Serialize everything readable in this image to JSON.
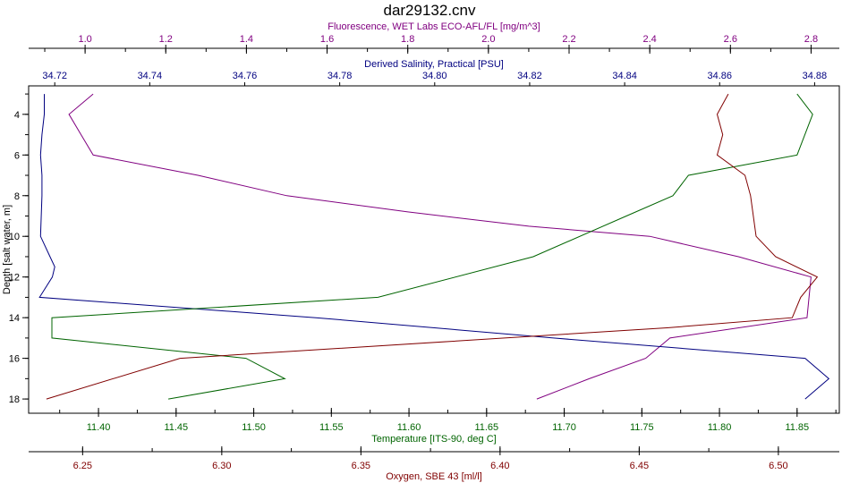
{
  "chart_data": {
    "type": "line",
    "title": "dar29132.cnv",
    "grid": false,
    "y_axis": {
      "label": "Depth [salt water, m]",
      "lim": [
        2.6,
        18.7
      ],
      "inverted": true,
      "ticks": [
        4,
        6,
        8,
        10,
        12,
        14,
        16,
        18
      ]
    },
    "x_axes": [
      {
        "id": "fluorescence",
        "label": "Fluorescence, WET Labs ECO-AFL/FL [mg/m^3]",
        "position": "top",
        "color": "#800080",
        "lim": [
          0.86,
          2.87
        ],
        "ticks": [
          1.0,
          1.2,
          1.4,
          1.6,
          1.8,
          2.0,
          2.2,
          2.4,
          2.6,
          2.8
        ],
        "tick_labels": [
          "1.0",
          "1.2",
          "1.4",
          "1.6",
          "1.8",
          "2.0",
          "2.2",
          "2.4",
          "2.6",
          "2.8"
        ]
      },
      {
        "id": "salinity",
        "label": "Derived Salinity, Practical [PSU]",
        "position": "top",
        "color": "#000080",
        "lim": [
          34.7145,
          34.8852
        ],
        "ticks": [
          34.72,
          34.74,
          34.76,
          34.78,
          34.8,
          34.82,
          34.84,
          34.86,
          34.88
        ],
        "tick_labels": [
          "34.72",
          "34.74",
          "34.76",
          "34.78",
          "34.80",
          "34.82",
          "34.84",
          "34.86",
          "34.88"
        ]
      },
      {
        "id": "temperature",
        "label": "Temperature [ITS-90, deg C]",
        "position": "bottom",
        "color": "#006400",
        "lim": [
          11.355,
          11.8772
        ],
        "ticks": [
          11.4,
          11.45,
          11.5,
          11.55,
          11.6,
          11.65,
          11.7,
          11.75,
          11.8,
          11.85
        ],
        "tick_labels": [
          "11.40",
          "11.45",
          "11.50",
          "11.55",
          "11.60",
          "11.65",
          "11.70",
          "11.75",
          "11.80",
          "11.85"
        ]
      },
      {
        "id": "oxygen",
        "label": "Oxygen, SBE 43 [ml/l]",
        "position": "bottom",
        "color": "#800000",
        "lim": [
          6.2306,
          6.5219
        ],
        "ticks": [
          6.25,
          6.3,
          6.35,
          6.4,
          6.45,
          6.5
        ],
        "tick_labels": [
          "6.25",
          "6.30",
          "6.35",
          "6.40",
          "6.45",
          "6.50"
        ]
      }
    ],
    "series": [
      {
        "axis": "fluorescence",
        "color": "#800080",
        "x": [
          1.02,
          0.96,
          0.99,
          1.02,
          1.28,
          1.5,
          1.8,
          2.1,
          2.4,
          2.62,
          2.8,
          2.79,
          2.45,
          2.39,
          2.25,
          2.12
        ],
        "y": [
          3.0,
          4.0,
          5.0,
          6.0,
          7.0,
          8.0,
          8.8,
          9.5,
          10.0,
          11.0,
          12.0,
          14.0,
          15.0,
          16.0,
          17.0,
          18.0
        ]
      },
      {
        "axis": "salinity",
        "color": "#000080",
        "x": [
          34.7178,
          34.7178,
          34.7173,
          34.717,
          34.7173,
          34.7173,
          34.717,
          34.719,
          34.72,
          34.7195,
          34.7168,
          34.775,
          34.825,
          34.878,
          34.883,
          34.878
        ],
        "y": [
          3.0,
          4.0,
          5.0,
          6.0,
          7.0,
          8.0,
          10.0,
          11.0,
          11.5,
          12.0,
          13.0,
          14.0,
          15.0,
          16.0,
          17.0,
          18.0
        ]
      },
      {
        "axis": "temperature",
        "color": "#006400",
        "x": [
          11.85,
          11.86,
          11.85,
          11.78,
          11.77,
          11.74,
          11.68,
          11.58,
          11.37,
          11.37,
          11.37,
          11.495,
          11.52,
          11.445
        ],
        "y": [
          3.0,
          4.0,
          6.0,
          7.0,
          8.0,
          9.0,
          11.0,
          13.0,
          14.0,
          15.0,
          15.0,
          16.0,
          17.0,
          18.0
        ]
      },
      {
        "axis": "oxygen",
        "color": "#800000",
        "x": [
          6.482,
          6.478,
          6.48,
          6.478,
          6.488,
          6.49,
          6.492,
          6.499,
          6.514,
          6.508,
          6.505,
          6.46,
          6.285,
          6.237
        ],
        "y": [
          3.0,
          4.0,
          5.0,
          6.0,
          7.0,
          8.0,
          10.0,
          11.0,
          12.0,
          13.0,
          14.0,
          14.5,
          16.0,
          18.0
        ]
      }
    ]
  }
}
